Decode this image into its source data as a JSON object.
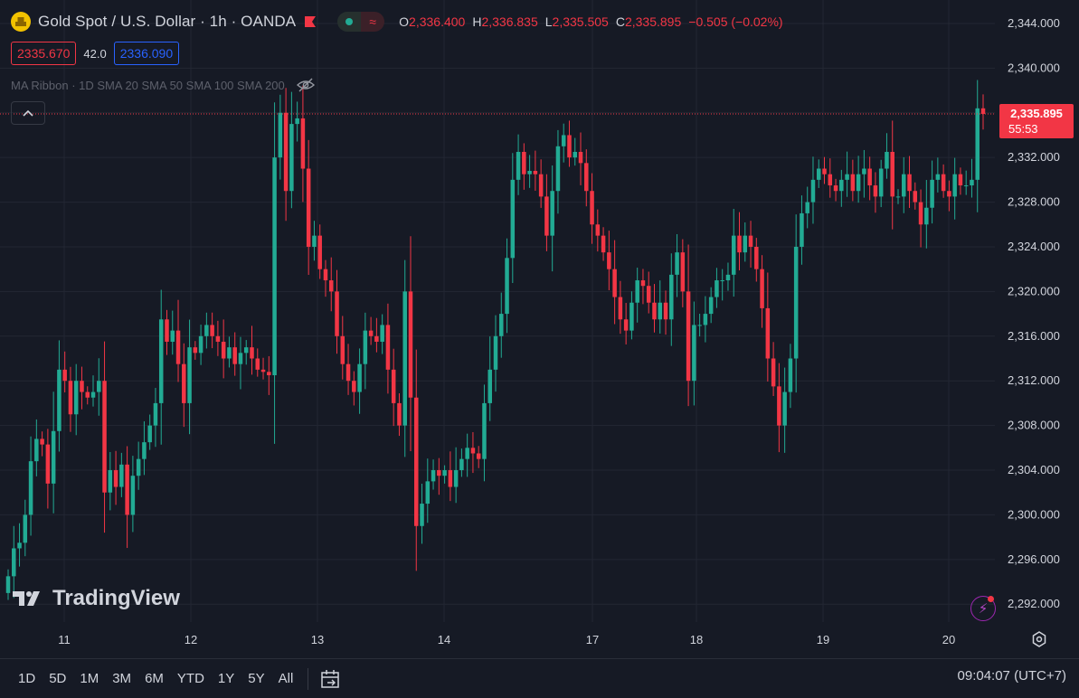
{
  "header": {
    "symbol_title": "Gold Spot / U.S. Dollar · 1h · OANDA",
    "ohlc": [
      {
        "key": "O",
        "value": "2,336.400"
      },
      {
        "key": "H",
        "value": "2,336.835"
      },
      {
        "key": "L",
        "value": "2,335.505"
      },
      {
        "key": "C",
        "value": "2,335.895"
      }
    ],
    "change": "−0.505 (−0.02%)"
  },
  "quotes": {
    "sell": "2335.670",
    "spread": "42.0",
    "buy": "2336.090"
  },
  "indicator": {
    "label": "MA Ribbon · 1D SMA 20 SMA 50 SMA 100 SMA 200"
  },
  "brand": "TradingView",
  "timeframes": [
    "1D",
    "5D",
    "1M",
    "3M",
    "6M",
    "YTD",
    "1Y",
    "5Y",
    "All"
  ],
  "clock": "09:04:07 (UTC+7)",
  "colors": {
    "background": "#161a25",
    "up": "#22ab94",
    "down": "#f23645",
    "grid": "#232733",
    "axis_text": "#d1d4dc"
  },
  "chart_data": {
    "type": "candlestick",
    "x_tick_labels": [
      "11",
      "12",
      "13",
      "14",
      "17",
      "18",
      "19",
      "20"
    ],
    "y_ticks": [
      2292,
      2296,
      2300,
      2304,
      2308,
      2312,
      2316,
      2320,
      2324,
      2328,
      2332,
      2336,
      2340,
      2344
    ],
    "y_tick_labels": [
      "2,292.000",
      "2,296.000",
      "2,300.000",
      "2,304.000",
      "2,308.000",
      "2,312.000",
      "2,316.000",
      "2,320.000",
      "2,324.000",
      "2,328.000",
      "2,332.000",
      "2,336.000",
      "2,340.000",
      "2,344.000"
    ],
    "ylim": [
      2290.4,
      2346.1
    ],
    "last_price": 2335.895,
    "last_price_label": "2,335.895",
    "countdown": "55:53",
    "grid": true,
    "closes": [
      2294.5,
      2297.0,
      2297.5,
      2300.0,
      2304.8,
      2306.8,
      2306.3,
      2302.8,
      2307.5,
      2313.0,
      2312.0,
      2309.0,
      2312.0,
      2311.0,
      2310.5,
      2311.0,
      2312.0,
      2302.0,
      2304.0,
      2302.5,
      2304.5,
      2300.0,
      2303.5,
      2305.0,
      2306.5,
      2308.0,
      2310.0,
      2317.5,
      2315.5,
      2316.5,
      2313.5,
      2310.0,
      2315.0,
      2314.5,
      2316.0,
      2317.0,
      2316.0,
      2315.5,
      2314.0,
      2315.0,
      2313.5,
      2314.5,
      2315.0,
      2314.0,
      2313.0,
      2312.8,
      2312.5,
      2332.0,
      2336.0,
      2329.0,
      2335.0,
      2335.5,
      2331.0,
      2324.0,
      2325.0,
      2322.0,
      2321.0,
      2320.0,
      2316.0,
      2313.5,
      2312.0,
      2311.0,
      2313.5,
      2316.5,
      2316.0,
      2315.5,
      2317.0,
      2313.0,
      2310.0,
      2308.0,
      2320.0,
      2310.5,
      2299.0,
      2301.0,
      2303.0,
      2304.0,
      2303.5,
      2304.0,
      2302.5,
      2304.0,
      2305.0,
      2306.0,
      2305.5,
      2305.0,
      2310.0,
      2313.0,
      2316.0,
      2318.0,
      2323.0,
      2330.0,
      2332.5,
      2330.5,
      2330.8,
      2330.5,
      2328.5,
      2325.0,
      2329.0,
      2333.0,
      2334.0,
      2332.0,
      2332.5,
      2331.5,
      2329.0,
      2326.0,
      2325.0,
      2323.5,
      2322.0,
      2319.5,
      2317.5,
      2316.5,
      2319.0,
      2321.0,
      2320.5,
      2319.0,
      2317.5,
      2319.0,
      2317.5,
      2321.5,
      2323.5,
      2320.0,
      2312.0,
      2317.0,
      2317.0,
      2318.0,
      2319.5,
      2321.0,
      2321.0,
      2321.5,
      2325.0,
      2323.5,
      2325.0,
      2324.0,
      2322.0,
      2318.5,
      2314.0,
      2311.5,
      2308.0,
      2311.0,
      2314.0,
      2324.0,
      2327.0,
      2328.0,
      2330.0,
      2331.0,
      2330.5,
      2329.5,
      2329.0,
      2330.0,
      2330.5,
      2329.0,
      2330.5,
      2331.0,
      2329.5,
      2328.5,
      2331.0,
      2332.5,
      2328.5,
      2328.5,
      2330.5,
      2329.0,
      2328.0,
      2326.0,
      2327.5,
      2330.0,
      2330.5,
      2329.0,
      2328.5,
      2330.5,
      2329.5,
      2329.5,
      2330.0,
      2336.4,
      2335.9
    ]
  }
}
